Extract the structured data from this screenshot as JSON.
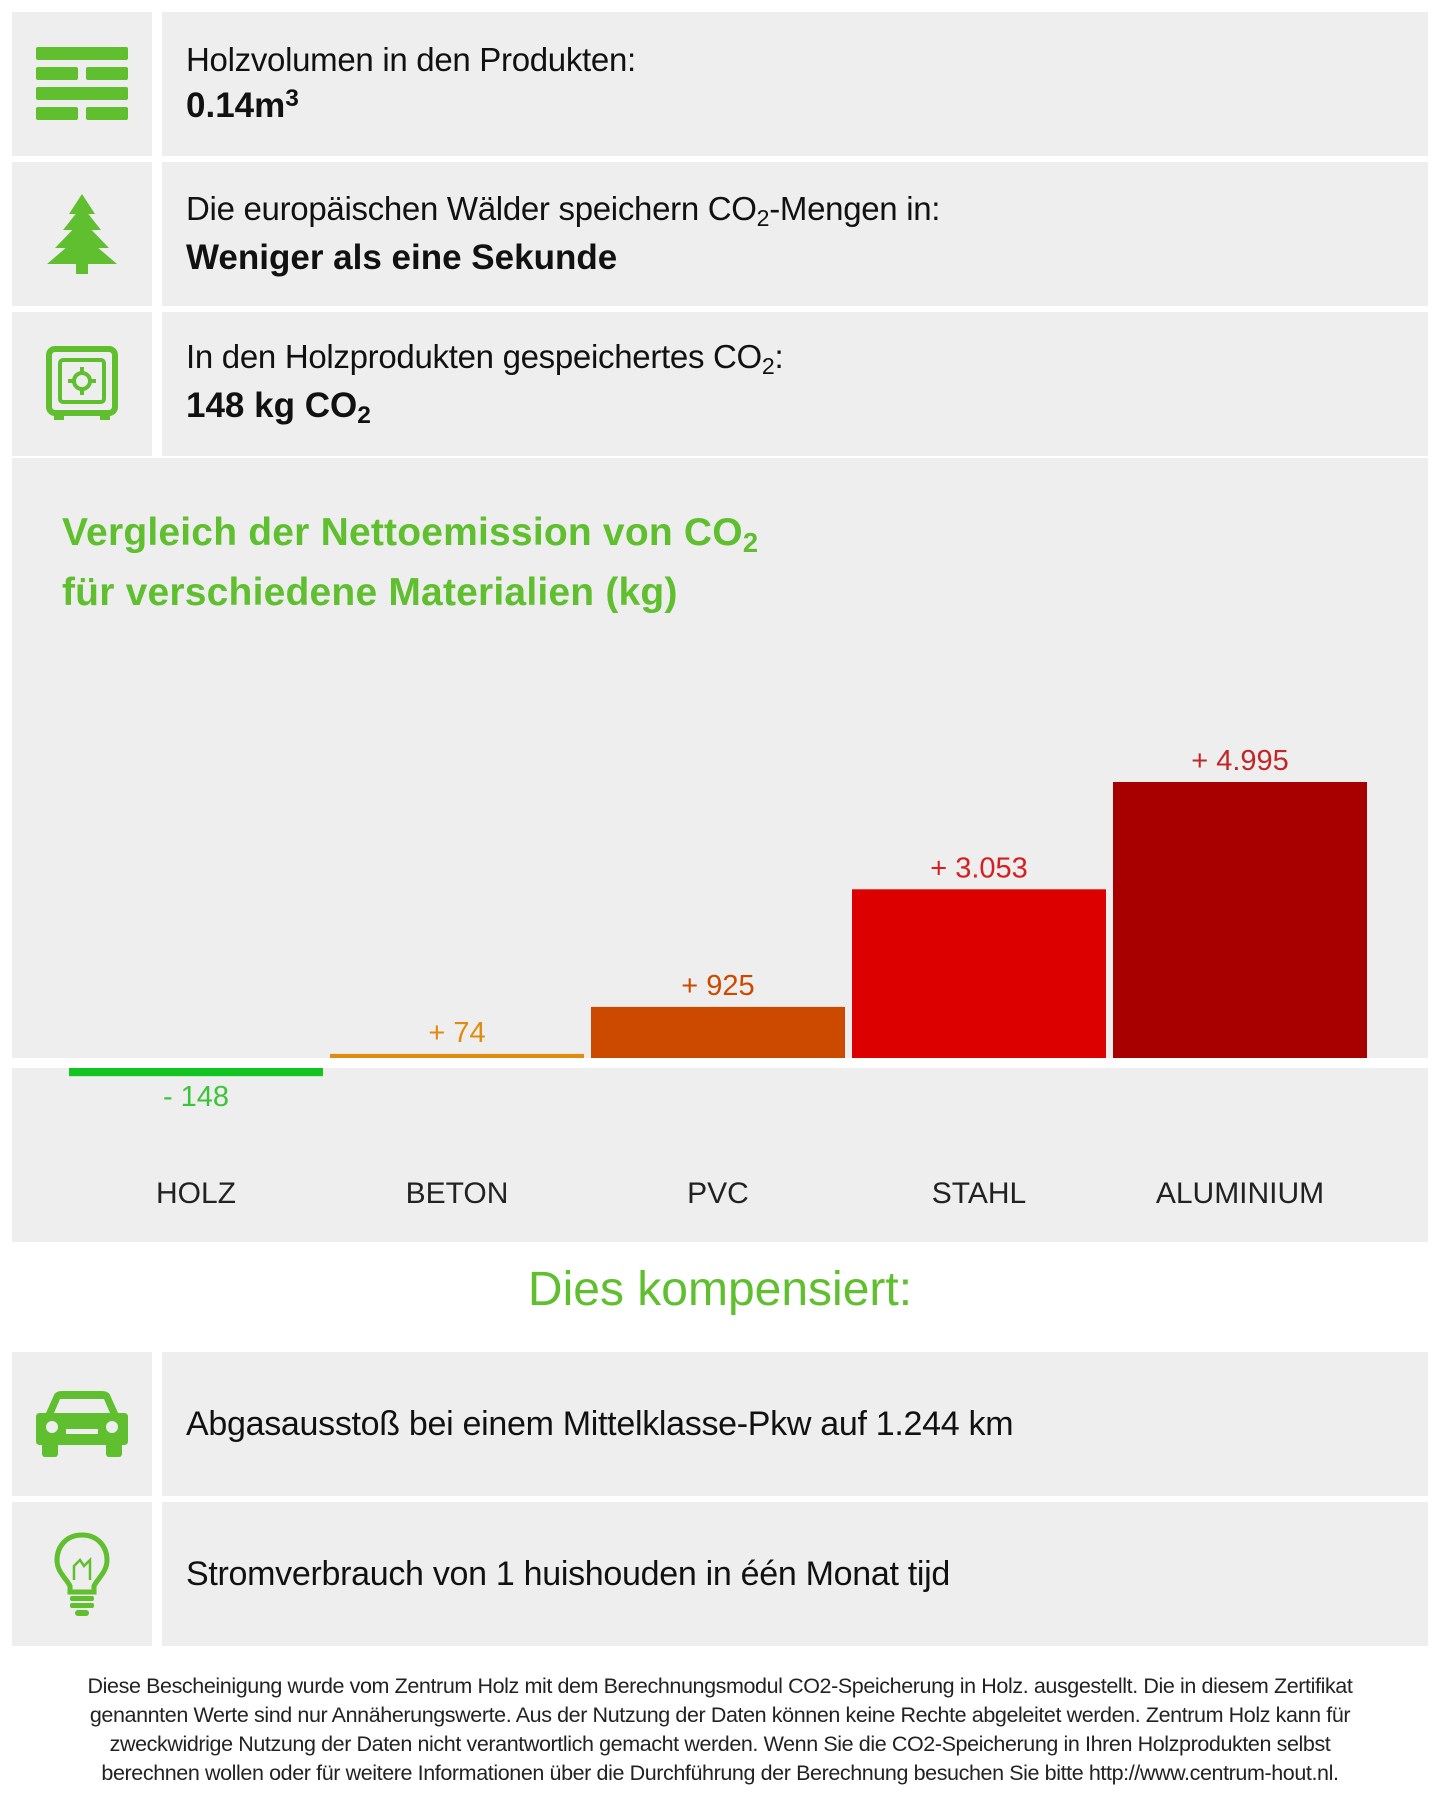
{
  "info_rows": [
    {
      "icon": "wood-stack-icon",
      "label": "Holzvolumen in den Produkten:",
      "value": "0.14m",
      "value_sup": "3"
    },
    {
      "icon": "tree-icon",
      "label_pre": "Die europäischen Wälder speichern CO",
      "label_sub": "2",
      "label_post": "-Mengen in:",
      "value": "Weniger als eine Sekunde"
    },
    {
      "icon": "safe-icon",
      "label_pre": "In den Holzprodukten gespeichertes CO",
      "label_sub": "2",
      "label_post": ":",
      "value": "148 kg CO",
      "value_sub": "2"
    }
  ],
  "chart_title": {
    "line1": "Vergleich der Nettoemission von CO",
    "line1_sub": "2",
    "line2": "für verschiedene Materialien (kg)"
  },
  "chart_data": {
    "type": "bar",
    "title": "Vergleich der Nettoemission von CO2 für verschiedene Materialien (kg)",
    "categories": [
      "HOLZ",
      "BETON",
      "PVC",
      "STAHL",
      "ALUMINIUM"
    ],
    "values": [
      -148,
      74,
      925,
      3053,
      4995
    ],
    "data_labels": [
      "- 148",
      "+ 74",
      "+ 925",
      "+ 3.053",
      "+ 4.995"
    ],
    "colors": [
      "#11c41f",
      "#e08a0e",
      "#cc4a00",
      "#dd0000",
      "#a80000"
    ],
    "label_colors": [
      "#3bc43a",
      "#e08a0e",
      "#cc4a00",
      "#d42020",
      "#c02828"
    ],
    "ylim": [
      -148,
      4995
    ],
    "grid": false,
    "legend": "none"
  },
  "compensation_title": "Dies kompensiert:",
  "compensation_rows": [
    {
      "icon": "car-icon",
      "text": "Abgasausstoß bei einem Mittelklasse-Pkw auf 1.244 km"
    },
    {
      "icon": "lightbulb-icon",
      "text": "Stromverbrauch von 1 huishouden in één Monat tijd"
    }
  ],
  "footer": {
    "line1": "Diese Bescheinigung wurde vom Zentrum Holz mit dem Berechnungsmodul CO2-Speicherung in Holz. ausgestellt. Die in diesem Zertifikat",
    "line2": "genannten Werte sind nur Annäherungswerte. Aus der Nutzung der Daten können keine Rechte abgeleitet werden. Zentrum Holz kann für",
    "line3": "zweckwidrige Nutzung der Daten nicht verantwortlich gemacht werden. Wenn Sie die CO2-Speicherung in Ihren Holzprodukten selbst",
    "line4": "berechnen wollen oder für weitere Informationen über die Durchführung der Berechnung besuchen Sie bitte http://www.centrum-hout.nl."
  },
  "accent_color": "#5fbf2e",
  "panel_color": "#eeeeee"
}
